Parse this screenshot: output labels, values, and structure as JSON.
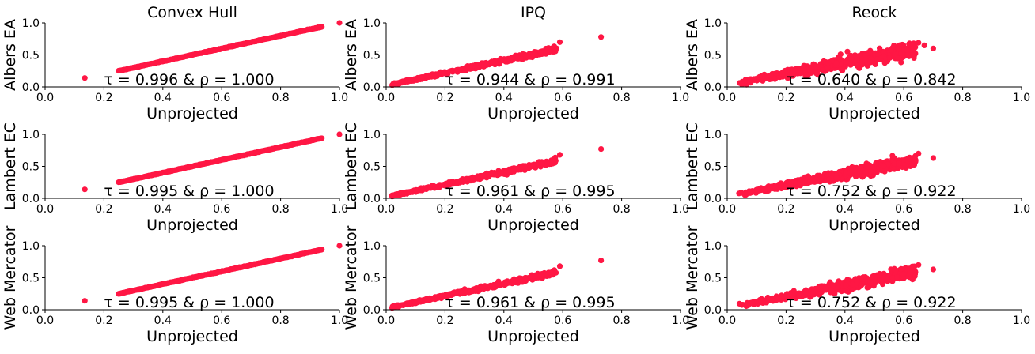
{
  "colors": {
    "point": "#ff1744"
  },
  "chart_data": [
    {
      "type": "scatter",
      "title": "Convex Hull",
      "xlabel": "Unprojected",
      "ylabel": "Albers EA",
      "xlim": [
        0,
        1
      ],
      "ylim": [
        0,
        1
      ],
      "xticks": [
        "0.0",
        "0.2",
        "0.4",
        "0.6",
        "0.8",
        "1.0"
      ],
      "yticks": [
        "0.0",
        "0.5",
        "1.0"
      ],
      "annotation": "τ = 0.996 & ρ = 1.000",
      "pattern": "hull",
      "outliers": [
        [
          0.135,
          0.14
        ],
        [
          1.0,
          1.0
        ]
      ]
    },
    {
      "type": "scatter",
      "title": "IPQ",
      "xlabel": "Unprojected",
      "ylabel": "Albers EA",
      "xlim": [
        0,
        1
      ],
      "ylim": [
        0,
        1
      ],
      "xticks": [
        "0.0",
        "0.2",
        "0.4",
        "0.6",
        "0.8",
        "1.0"
      ],
      "yticks": [
        "0.0",
        "0.5",
        "1.0"
      ],
      "annotation": "τ = 0.944 & ρ = 0.991",
      "pattern": "ipq",
      "outliers": [
        [
          0.59,
          0.7
        ],
        [
          0.73,
          0.78
        ]
      ]
    },
    {
      "type": "scatter",
      "title": "Reock",
      "xlabel": "Unprojected",
      "ylabel": "Albers EA",
      "xlim": [
        0,
        1
      ],
      "ylim": [
        0,
        1
      ],
      "xticks": [
        "0.0",
        "0.2",
        "0.4",
        "0.6",
        "0.8",
        "1.0"
      ],
      "yticks": [
        "0.0",
        "0.5",
        "1.0"
      ],
      "annotation": "τ = 0.640 & ρ = 0.842",
      "pattern": "reock1",
      "outliers": [
        [
          0.65,
          0.69
        ],
        [
          0.7,
          0.6
        ],
        [
          0.61,
          0.58
        ],
        [
          0.67,
          0.65
        ]
      ]
    },
    {
      "type": "scatter",
      "title": "",
      "xlabel": "Unprojected",
      "ylabel": "Lambert EC",
      "xlim": [
        0,
        1
      ],
      "ylim": [
        0,
        1
      ],
      "xticks": [
        "0.0",
        "0.2",
        "0.4",
        "0.6",
        "0.8",
        "1.0"
      ],
      "yticks": [
        "0.0",
        "0.5",
        "1.0"
      ],
      "annotation": "τ = 0.995 & ρ = 1.000",
      "pattern": "hull",
      "outliers": [
        [
          0.135,
          0.14
        ],
        [
          1.0,
          1.0
        ]
      ]
    },
    {
      "type": "scatter",
      "title": "",
      "xlabel": "Unprojected",
      "ylabel": "Lambert EC",
      "xlim": [
        0,
        1
      ],
      "ylim": [
        0,
        1
      ],
      "xticks": [
        "0.0",
        "0.2",
        "0.4",
        "0.6",
        "0.8",
        "1.0"
      ],
      "yticks": [
        "0.0",
        "0.5",
        "1.0"
      ],
      "annotation": "τ = 0.961 & ρ = 0.995",
      "pattern": "ipq",
      "outliers": [
        [
          0.59,
          0.68
        ],
        [
          0.73,
          0.77
        ]
      ]
    },
    {
      "type": "scatter",
      "title": "",
      "xlabel": "Unprojected",
      "ylabel": "Lambert EC",
      "xlim": [
        0,
        1
      ],
      "ylim": [
        0,
        1
      ],
      "xticks": [
        "0.0",
        "0.2",
        "0.4",
        "0.6",
        "0.8",
        "1.0"
      ],
      "yticks": [
        "0.0",
        "0.5",
        "1.0"
      ],
      "annotation": "τ = 0.752 & ρ = 0.922",
      "pattern": "reock2",
      "outliers": [
        [
          0.65,
          0.7
        ],
        [
          0.7,
          0.63
        ],
        [
          0.62,
          0.62
        ]
      ]
    },
    {
      "type": "scatter",
      "title": "",
      "xlabel": "Unprojected",
      "ylabel": "Web Mercator",
      "xlim": [
        0,
        1
      ],
      "ylim": [
        0,
        1
      ],
      "xticks": [
        "0.0",
        "0.2",
        "0.4",
        "0.6",
        "0.8",
        "1.0"
      ],
      "yticks": [
        "0.0",
        "0.5",
        "1.0"
      ],
      "annotation": "τ = 0.995 & ρ = 1.000",
      "pattern": "hull",
      "outliers": [
        [
          0.135,
          0.14
        ],
        [
          1.0,
          1.0
        ]
      ]
    },
    {
      "type": "scatter",
      "title": "",
      "xlabel": "Unprojected",
      "ylabel": "Web Mercator",
      "xlim": [
        0,
        1
      ],
      "ylim": [
        0,
        1
      ],
      "xticks": [
        "0.0",
        "0.2",
        "0.4",
        "0.6",
        "0.8",
        "1.0"
      ],
      "yticks": [
        "0.0",
        "0.5",
        "1.0"
      ],
      "annotation": "τ = 0.961 & ρ = 0.995",
      "pattern": "ipq",
      "outliers": [
        [
          0.59,
          0.68
        ],
        [
          0.73,
          0.77
        ]
      ]
    },
    {
      "type": "scatter",
      "title": "",
      "xlabel": "Unprojected",
      "ylabel": "Web Mercator",
      "xlim": [
        0,
        1
      ],
      "ylim": [
        0,
        1
      ],
      "xticks": [
        "0.0",
        "0.2",
        "0.4",
        "0.6",
        "0.8",
        "1.0"
      ],
      "yticks": [
        "0.0",
        "0.5",
        "1.0"
      ],
      "annotation": "τ = 0.752 & ρ = 0.922",
      "pattern": "reock2",
      "outliers": [
        [
          0.65,
          0.7
        ],
        [
          0.7,
          0.63
        ],
        [
          0.62,
          0.62
        ]
      ]
    }
  ]
}
